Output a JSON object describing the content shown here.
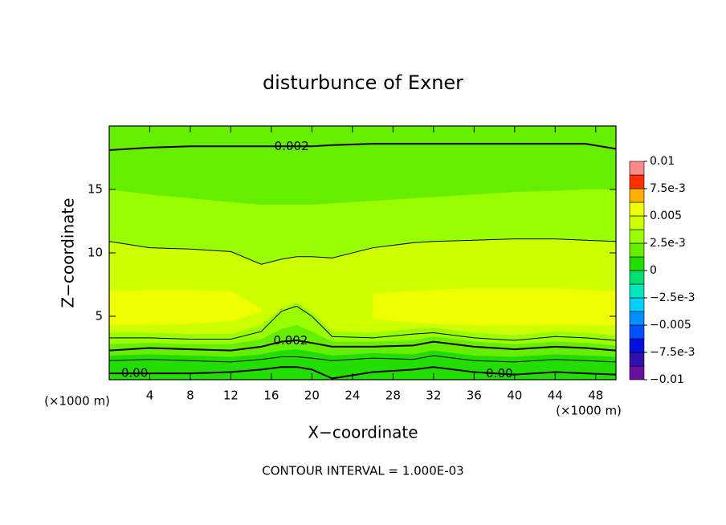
{
  "chart_data": {
    "type": "contour",
    "title": "disturbunce of Exner",
    "xlabel": "X−coordinate",
    "ylabel": "Z−coordinate",
    "x_unit_label": "(×1000 m)",
    "y_unit_label": "(×1000 m)",
    "contour_interval_text": "CONTOUR INTERVAL = 1.000E-03",
    "xlim": [
      0,
      50
    ],
    "ylim": [
      0,
      20
    ],
    "xticks": [
      4,
      8,
      12,
      16,
      20,
      24,
      28,
      32,
      36,
      40,
      44,
      48
    ],
    "yticks": [
      5,
      10,
      15
    ],
    "x": [
      0,
      4,
      8,
      12,
      15,
      17,
      18.5,
      20,
      22,
      26,
      30,
      32,
      36,
      40,
      44,
      47,
      50
    ],
    "background_level": 0.00125,
    "fills": [
      {
        "level": 0,
        "upper": [
          1.9,
          2.0,
          1.9,
          1.8,
          2.0,
          2.3,
          2.4,
          2.2,
          1.9,
          2.1,
          2.0,
          2.3,
          1.9,
          1.8,
          2.0,
          1.9,
          1.8
        ]
      },
      {
        "level": 0.0025,
        "lower": [
          2.8,
          2.9,
          2.8,
          2.8,
          3.2,
          4.0,
          4.3,
          3.8,
          3.0,
          3.0,
          3.1,
          3.4,
          3.0,
          2.8,
          3.0,
          2.9,
          2.7
        ],
        "upper": [
          15,
          14.6,
          14.3,
          14.0,
          13.8,
          13.8,
          13.8,
          13.8,
          13.9,
          14.1,
          14.3,
          14.4,
          14.6,
          14.8,
          14.9,
          15,
          15
        ]
      },
      {
        "level": 0.00375,
        "lower": [
          3.7,
          3.7,
          3.6,
          3.6,
          4.3,
          5.6,
          6.1,
          5.3,
          3.8,
          3.7,
          4.0,
          4.1,
          3.7,
          3.5,
          3.8,
          3.7,
          3.5
        ],
        "upper": [
          10.9,
          10.4,
          10.3,
          10.1,
          9.1,
          9.5,
          9.7,
          9.7,
          9.6,
          10.4,
          10.8,
          10.9,
          11.0,
          11.1,
          11.1,
          11.0,
          10.9
        ]
      },
      {
        "level": 0.005,
        "lower": [
          4.3,
          4.3,
          4.4,
          4.6,
          5.3,
          null,
          null,
          null,
          null,
          4.8,
          4.5,
          4.4,
          4.3,
          4.3,
          4.3,
          4.3,
          4.3
        ],
        "upper": [
          7.0,
          7.1,
          7.1,
          7.0,
          5.6,
          null,
          null,
          null,
          null,
          6.8,
          7.0,
          7.1,
          7.2,
          7.2,
          7.2,
          7.1,
          7.0
        ]
      }
    ],
    "contours": [
      {
        "level": 0.002,
        "label": "0.002",
        "label_x": [
          18
        ],
        "y": [
          18.1,
          18.3,
          18.4,
          18.4,
          18.4,
          18.4,
          18.4,
          18.4,
          18.5,
          18.6,
          18.6,
          18.6,
          18.6,
          18.6,
          18.6,
          18.6,
          18.2
        ]
      },
      {
        "level": 0.003,
        "y": [
          10.9,
          10.4,
          10.3,
          10.1,
          9.1,
          9.5,
          9.7,
          9.7,
          9.6,
          10.4,
          10.8,
          10.9,
          11.0,
          11.1,
          11.1,
          11.0,
          10.9
        ]
      },
      {
        "level": 0.003,
        "y": [
          3.3,
          3.3,
          3.2,
          3.2,
          3.8,
          5.4,
          5.8,
          5.0,
          3.4,
          3.3,
          3.6,
          3.7,
          3.3,
          3.1,
          3.4,
          3.3,
          3.1
        ]
      },
      {
        "level": 0.002,
        "label": "0.002",
        "label_x": [
          17.9
        ],
        "y": [
          2.3,
          2.5,
          2.4,
          2.3,
          2.6,
          3.0,
          3.1,
          2.9,
          2.6,
          2.6,
          2.7,
          3.0,
          2.6,
          2.4,
          2.6,
          2.5,
          2.3
        ]
      },
      {
        "level": 0.001,
        "y": [
          1.5,
          1.6,
          1.5,
          1.4,
          1.6,
          1.8,
          1.8,
          1.7,
          1.5,
          1.7,
          1.6,
          1.9,
          1.5,
          1.4,
          1.6,
          1.5,
          1.4
        ]
      },
      {
        "level": 0,
        "label": "0.00",
        "label_x": [
          2.5,
          38.5
        ],
        "y": [
          0.5,
          0.5,
          0.5,
          0.6,
          0.8,
          1.0,
          1.0,
          0.8,
          0.1,
          0.6,
          0.8,
          1.0,
          0.6,
          0.4,
          0.6,
          0.5,
          0.4
        ]
      }
    ],
    "colorbar": {
      "levels": [
        -0.01,
        -0.00875,
        -0.0075,
        -0.00625,
        -0.005,
        -0.00375,
        -0.0025,
        -0.00125,
        0,
        0.00125,
        0.0025,
        0.00375,
        0.005,
        0.00625,
        0.0075,
        0.00875,
        0.01
      ],
      "colors": [
        "#6a10a0",
        "#3010b0",
        "#0010e0",
        "#0050ff",
        "#0090ff",
        "#00d0ff",
        "#00e8c0",
        "#00e070",
        "#22dd00",
        "#66ee00",
        "#99ff00",
        "#ccff00",
        "#eeff00",
        "#ffb000",
        "#ff3000",
        "#ff8888"
      ],
      "ticks": [
        {
          "value": -0.01,
          "label": "−0.01"
        },
        {
          "value": -0.0075,
          "label": "−7.5e-3"
        },
        {
          "value": -0.005,
          "label": "−0.005"
        },
        {
          "value": -0.0025,
          "label": "−2.5e-3"
        },
        0,
        {
          "value": 0.0025,
          "label": "2.5e-3"
        },
        0.005,
        {
          "value": 0.0075,
          "label": "7.5e-3"
        },
        0.01
      ]
    }
  }
}
